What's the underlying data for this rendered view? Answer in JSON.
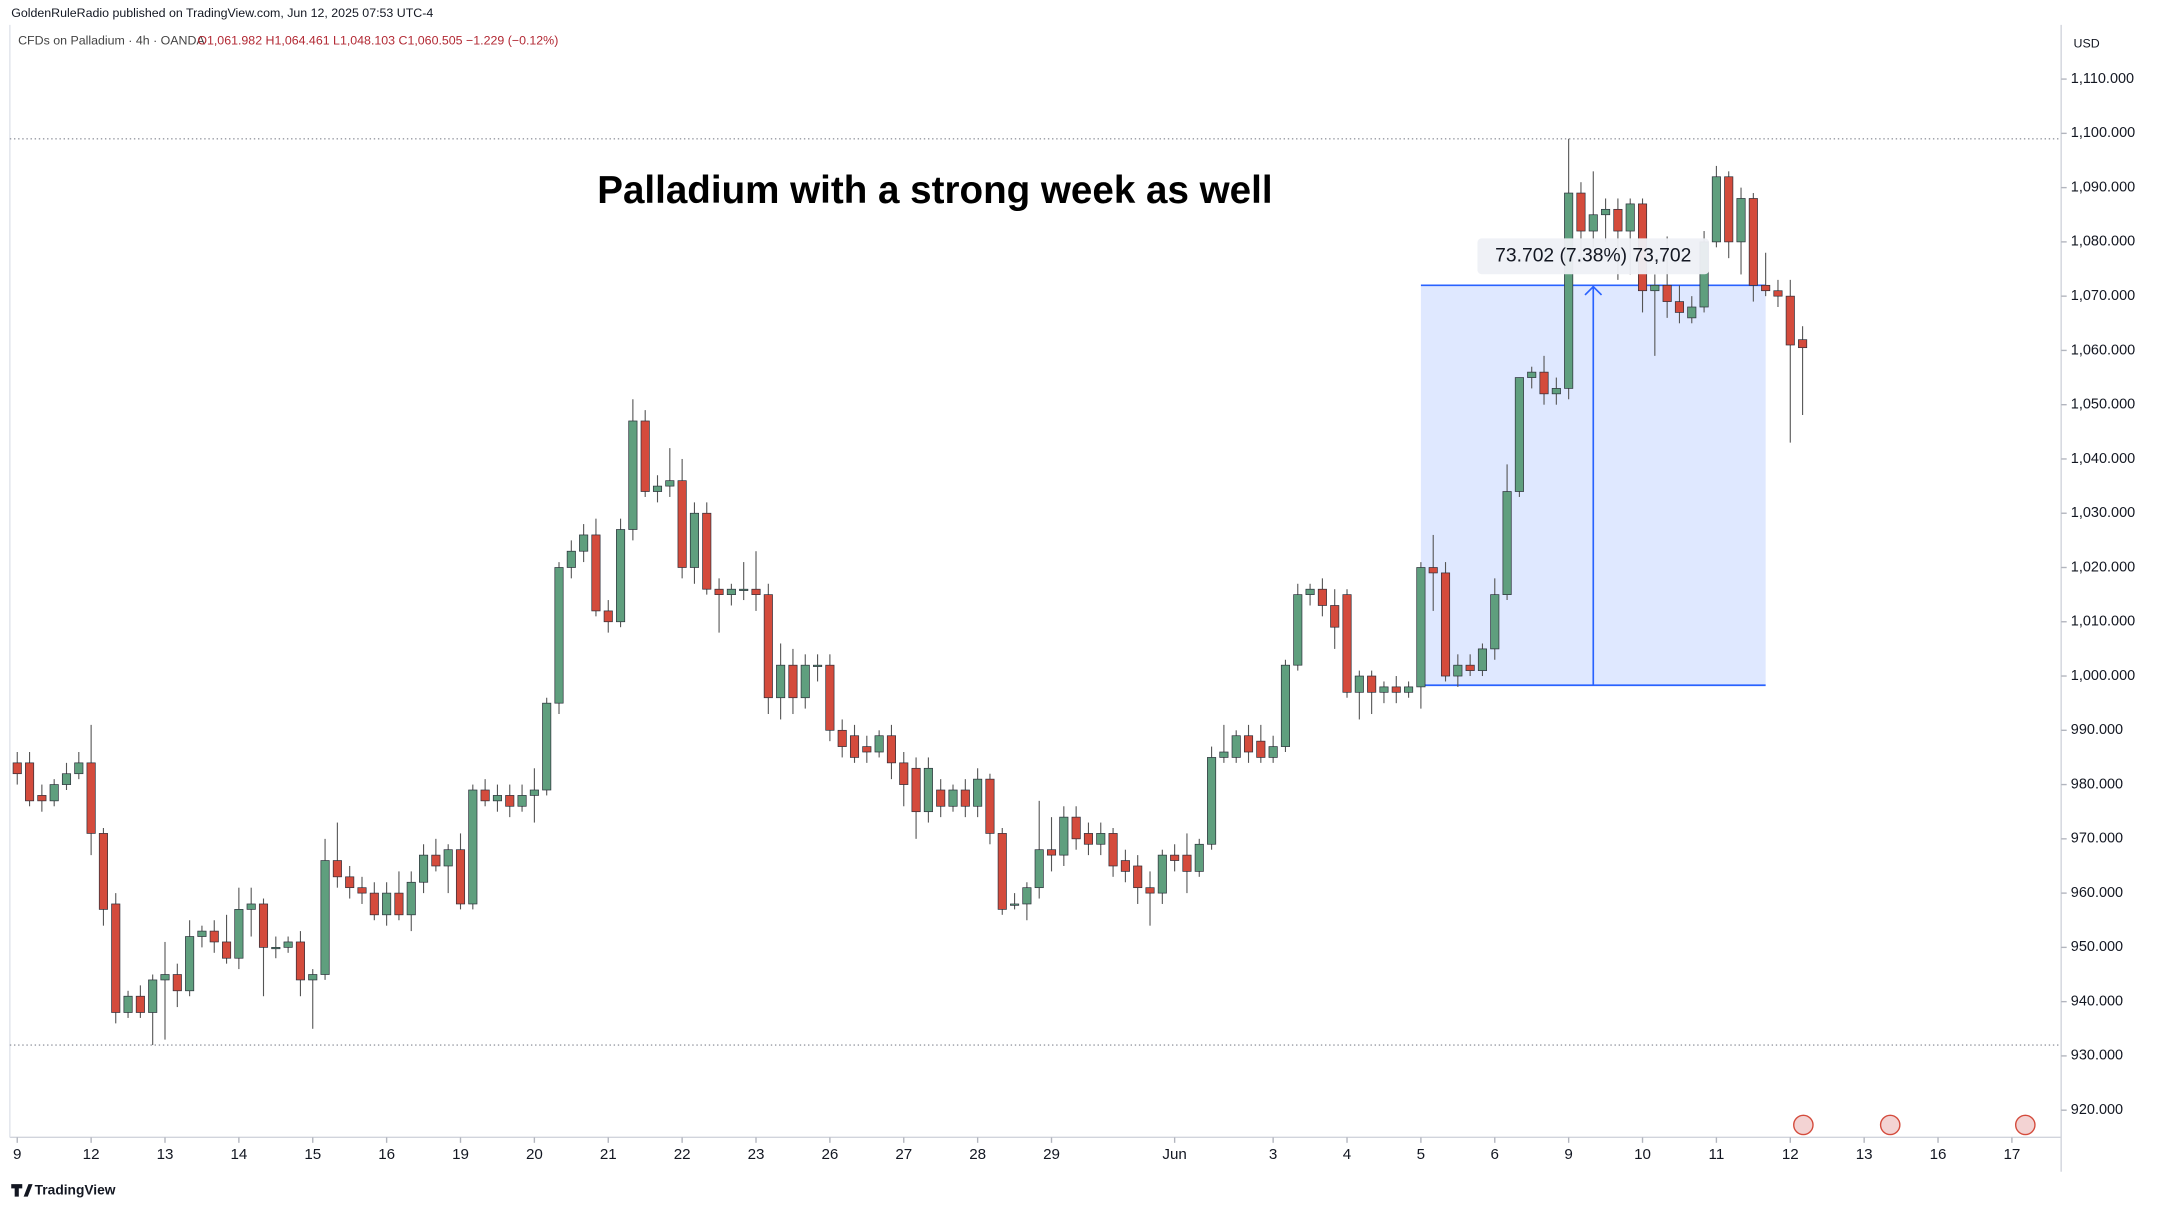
{
  "chart_data": {
    "type": "candlestick",
    "publisher": "GoldenRuleRadio published on TradingView.com, Jun 12, 2025 07:53 UTC-4",
    "symbol": "CFDs on Palladium · 4h · OANDA",
    "ohlc_label": "O1,061.982 H1,064.461 L1,048.103 C1,060.505 −1.229 (−0.12%)",
    "title": "Palladium with a strong week as well",
    "currency": "USD",
    "brand": "TradingView",
    "up_color": "#5f9f7e",
    "down_color": "#d44b3c",
    "ylim": [
      915,
      1120
    ],
    "yticks": [
      {
        "value": 920,
        "label": "920.000"
      },
      {
        "value": 930,
        "label": "930.000"
      },
      {
        "value": 940,
        "label": "940.000"
      },
      {
        "value": 950,
        "label": "950.000"
      },
      {
        "value": 960,
        "label": "960.000"
      },
      {
        "value": 970,
        "label": "970.000"
      },
      {
        "value": 980,
        "label": "980.000"
      },
      {
        "value": 990,
        "label": "990.000"
      },
      {
        "value": 1000,
        "label": "1,000.000"
      },
      {
        "value": 1010,
        "label": "1,010.000"
      },
      {
        "value": 1020,
        "label": "1,020.000"
      },
      {
        "value": 1030,
        "label": "1,030.000"
      },
      {
        "value": 1040,
        "label": "1,040.000"
      },
      {
        "value": 1050,
        "label": "1,050.000"
      },
      {
        "value": 1060,
        "label": "1,060.000"
      },
      {
        "value": 1070,
        "label": "1,070.000"
      },
      {
        "value": 1080,
        "label": "1,080.000"
      },
      {
        "value": 1090,
        "label": "1,090.000"
      },
      {
        "value": 1100,
        "label": "1,100.000"
      },
      {
        "value": 1110,
        "label": "1,110.000"
      }
    ],
    "xlim": [
      -0.6,
      166
    ],
    "xticks": [
      {
        "value": 0,
        "label": "9"
      },
      {
        "value": 6,
        "label": "12"
      },
      {
        "value": 12,
        "label": "13"
      },
      {
        "value": 18,
        "label": "14"
      },
      {
        "value": 24,
        "label": "15"
      },
      {
        "value": 30,
        "label": "16"
      },
      {
        "value": 36,
        "label": "19"
      },
      {
        "value": 42,
        "label": "20"
      },
      {
        "value": 48,
        "label": "21"
      },
      {
        "value": 54,
        "label": "22"
      },
      {
        "value": 60,
        "label": "23"
      },
      {
        "value": 66,
        "label": "26"
      },
      {
        "value": 72,
        "label": "27"
      },
      {
        "value": 78,
        "label": "28"
      },
      {
        "value": 84,
        "label": "29"
      },
      {
        "value": 94,
        "label": "Jun"
      },
      {
        "value": 102,
        "label": "3"
      },
      {
        "value": 108,
        "label": "4"
      },
      {
        "value": 114,
        "label": "5"
      },
      {
        "value": 120,
        "label": "6"
      },
      {
        "value": 126,
        "label": "9"
      },
      {
        "value": 132,
        "label": "10"
      },
      {
        "value": 138,
        "label": "11"
      },
      {
        "value": 144,
        "label": "12"
      },
      {
        "value": 150,
        "label": "13"
      },
      {
        "value": 156,
        "label": "16"
      },
      {
        "value": 162,
        "label": "17"
      }
    ],
    "measure": {
      "from": 998.3,
      "to": 1072.002,
      "start": 114,
      "end": 142,
      "label": "73.702 (7.38%) 73,702"
    },
    "candles": [
      [
        984,
        986,
        980,
        982
      ],
      [
        984,
        986,
        976,
        977
      ],
      [
        978,
        980,
        975,
        977
      ],
      [
        977,
        981,
        976,
        980
      ],
      [
        980,
        984,
        979,
        982
      ],
      [
        982,
        986,
        981,
        984
      ],
      [
        984,
        991,
        967,
        971
      ],
      [
        971,
        972,
        954,
        957
      ],
      [
        958,
        960,
        936,
        938
      ],
      [
        938,
        942,
        937,
        941
      ],
      [
        941,
        943,
        937,
        938
      ],
      [
        938,
        945,
        932,
        944
      ],
      [
        944,
        951,
        933,
        945
      ],
      [
        945,
        947,
        939,
        942
      ],
      [
        942,
        955,
        941,
        952
      ],
      [
        952,
        954,
        950,
        953
      ],
      [
        953,
        955,
        949,
        951
      ],
      [
        951,
        956,
        947,
        948
      ],
      [
        948,
        961,
        946,
        957
      ],
      [
        957,
        961,
        952,
        958
      ],
      [
        958,
        959,
        941,
        950
      ],
      [
        950,
        952,
        948,
        950
      ],
      [
        950,
        952,
        949,
        951
      ],
      [
        951,
        953,
        941,
        944
      ],
      [
        944,
        946,
        935,
        945
      ],
      [
        945,
        970,
        944,
        966
      ],
      [
        966,
        973,
        961,
        963
      ],
      [
        963,
        965,
        959,
        961
      ],
      [
        961,
        963,
        958,
        960
      ],
      [
        960,
        962,
        955,
        956
      ],
      [
        956,
        962,
        954,
        960
      ],
      [
        960,
        964,
        955,
        956
      ],
      [
        956,
        964,
        953,
        962
      ],
      [
        962,
        969,
        960,
        967
      ],
      [
        967,
        970,
        964,
        965
      ],
      [
        965,
        969,
        960,
        968
      ],
      [
        968,
        971,
        957,
        958
      ],
      [
        958,
        980,
        957,
        979
      ],
      [
        979,
        981,
        976,
        977
      ],
      [
        977,
        980,
        975,
        978
      ],
      [
        978,
        980,
        974,
        976
      ],
      [
        976,
        980,
        975,
        978
      ],
      [
        978,
        983,
        973,
        979
      ],
      [
        979,
        996,
        978,
        995
      ],
      [
        995,
        1021,
        993,
        1020
      ],
      [
        1020,
        1025,
        1018,
        1023
      ],
      [
        1023,
        1028,
        1021,
        1026
      ],
      [
        1026,
        1029,
        1011,
        1012
      ],
      [
        1012,
        1014,
        1008,
        1010
      ],
      [
        1010,
        1029,
        1009,
        1027
      ],
      [
        1027,
        1051,
        1025,
        1047
      ],
      [
        1047,
        1049,
        1033,
        1034
      ],
      [
        1034,
        1037,
        1032,
        1035
      ],
      [
        1035,
        1042,
        1033,
        1036
      ],
      [
        1036,
        1040,
        1018,
        1020
      ],
      [
        1020,
        1032,
        1017,
        1030
      ],
      [
        1030,
        1032,
        1015,
        1016
      ],
      [
        1016,
        1018,
        1008,
        1015
      ],
      [
        1015,
        1017,
        1013,
        1016
      ],
      [
        1016,
        1021,
        1014,
        1016
      ],
      [
        1016,
        1023,
        1012,
        1015
      ],
      [
        1015,
        1017,
        993,
        996
      ],
      [
        996,
        1006,
        992,
        1002
      ],
      [
        1002,
        1005,
        993,
        996
      ],
      [
        996,
        1004,
        994,
        1002
      ],
      [
        1002,
        1004,
        999,
        1002
      ],
      [
        1002,
        1004,
        988,
        990
      ],
      [
        990,
        992,
        985,
        987
      ],
      [
        989,
        991,
        984,
        985
      ],
      [
        987,
        989,
        984,
        986
      ],
      [
        986,
        990,
        985,
        989
      ],
      [
        989,
        991,
        981,
        984
      ],
      [
        984,
        986,
        976,
        980
      ],
      [
        983,
        985,
        970,
        975
      ],
      [
        975,
        985,
        973,
        983
      ],
      [
        979,
        981,
        974,
        976
      ],
      [
        976,
        980,
        975,
        979
      ],
      [
        979,
        981,
        974,
        976
      ],
      [
        976,
        983,
        974,
        981
      ],
      [
        981,
        982,
        969,
        971
      ],
      [
        971,
        972,
        956,
        957
      ],
      [
        958,
        960,
        957,
        958
      ],
      [
        958,
        962,
        955,
        961
      ],
      [
        961,
        977,
        959,
        968
      ],
      [
        968,
        974,
        964,
        967
      ],
      [
        967,
        976,
        965,
        974
      ],
      [
        974,
        976,
        968,
        970
      ],
      [
        971,
        973,
        967,
        969
      ],
      [
        969,
        973,
        967,
        971
      ],
      [
        971,
        972,
        963,
        965
      ],
      [
        966,
        968,
        962,
        964
      ],
      [
        965,
        967,
        958,
        961
      ],
      [
        961,
        964,
        954,
        960
      ],
      [
        960,
        968,
        958,
        967
      ],
      [
        967,
        969,
        964,
        966
      ],
      [
        967,
        971,
        960,
        964
      ],
      [
        964,
        970,
        963,
        969
      ],
      [
        969,
        987,
        968,
        985
      ],
      [
        985,
        991,
        984,
        986
      ],
      [
        985,
        990,
        984,
        989
      ],
      [
        989,
        991,
        984,
        986
      ],
      [
        988,
        991,
        984,
        985
      ],
      [
        985,
        989,
        984,
        987
      ],
      [
        987,
        1003,
        986,
        1002
      ],
      [
        1002,
        1017,
        1001,
        1015
      ],
      [
        1015,
        1017,
        1013,
        1016
      ],
      [
        1016,
        1018,
        1011,
        1013
      ],
      [
        1013,
        1016,
        1005,
        1009
      ],
      [
        1015,
        1016,
        996,
        997
      ],
      [
        997,
        1001,
        992,
        1000
      ],
      [
        1000,
        1001,
        993,
        997
      ],
      [
        997,
        999,
        995,
        998
      ],
      [
        998,
        1000,
        995,
        997
      ],
      [
        997,
        999,
        996,
        998
      ],
      [
        998,
        1021,
        994,
        1020
      ],
      [
        1020,
        1026,
        1012,
        1019
      ],
      [
        1019,
        1021,
        999,
        1000
      ],
      [
        1000,
        1004,
        998,
        1002
      ],
      [
        1002,
        1004,
        1000,
        1001
      ],
      [
        1001,
        1006,
        1000,
        1005
      ],
      [
        1005,
        1018,
        1003,
        1015
      ],
      [
        1015,
        1039,
        1014,
        1034
      ],
      [
        1034,
        1055,
        1033,
        1055
      ],
      [
        1055,
        1057,
        1053,
        1056
      ],
      [
        1056,
        1059,
        1050,
        1052
      ],
      [
        1052,
        1055,
        1050,
        1053
      ],
      [
        1053,
        1099,
        1051,
        1089
      ],
      [
        1089,
        1091,
        1076,
        1082
      ],
      [
        1082,
        1093,
        1079,
        1085
      ],
      [
        1085,
        1088,
        1080,
        1086
      ],
      [
        1086,
        1088,
        1073,
        1082
      ],
      [
        1082,
        1088,
        1074,
        1087
      ],
      [
        1087,
        1088,
        1067,
        1071
      ],
      [
        1071,
        1074,
        1059,
        1072
      ],
      [
        1072,
        1081,
        1066,
        1069
      ],
      [
        1069,
        1072,
        1065,
        1067
      ],
      [
        1066,
        1070,
        1065,
        1068
      ],
      [
        1068,
        1082,
        1067,
        1080
      ],
      [
        1080,
        1094,
        1079,
        1092
      ],
      [
        1092,
        1093,
        1077,
        1080
      ],
      [
        1080,
        1090,
        1074,
        1088
      ],
      [
        1088,
        1089,
        1069,
        1072
      ],
      [
        1072,
        1078,
        1070,
        1071
      ],
      [
        1071,
        1073,
        1068,
        1070
      ],
      [
        1070,
        1073,
        1043,
        1061
      ],
      [
        1061.982,
        1064.461,
        1048.103,
        1060.505
      ]
    ]
  }
}
